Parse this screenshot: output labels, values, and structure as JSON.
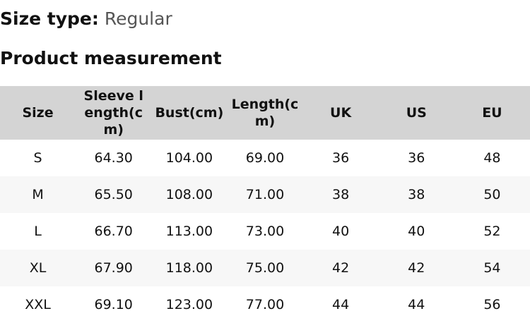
{
  "size_type": {
    "label": "Size type:",
    "value": "Regular"
  },
  "title": "Product measurement",
  "table": {
    "headers": [
      "Size",
      "Sleeve length(cm)",
      "Bust(cm)",
      "Length(cm)",
      "UK",
      "US",
      "EU"
    ],
    "rows": [
      [
        "S",
        "64.30",
        "104.00",
        "69.00",
        "36",
        "36",
        "48"
      ],
      [
        "M",
        "65.50",
        "108.00",
        "71.00",
        "38",
        "38",
        "50"
      ],
      [
        "L",
        "66.70",
        "113.00",
        "73.00",
        "40",
        "40",
        "52"
      ],
      [
        "XL",
        "67.90",
        "118.00",
        "75.00",
        "42",
        "42",
        "54"
      ],
      [
        "XXL",
        "69.10",
        "123.00",
        "77.00",
        "44",
        "44",
        "56"
      ]
    ]
  }
}
